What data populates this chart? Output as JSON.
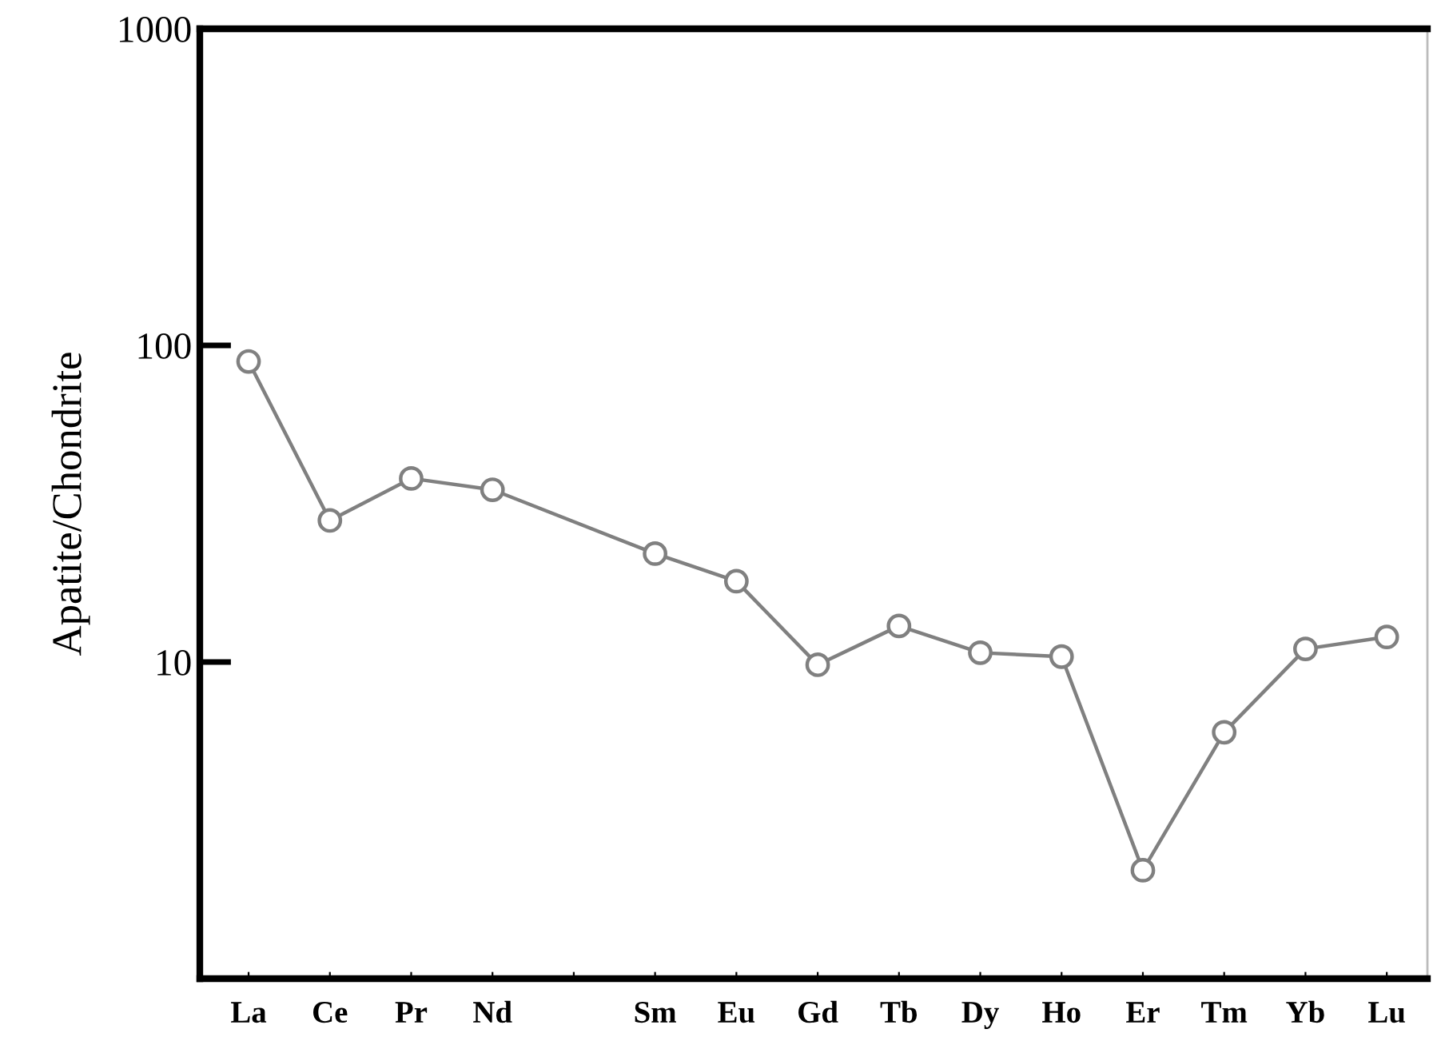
{
  "chart_data": {
    "type": "line",
    "ylabel": "Apatite/Chondrite",
    "categories": [
      "La",
      "Ce",
      "Pr",
      "Nd",
      null,
      "Sm",
      "Eu",
      "Gd",
      "Tb",
      "Dy",
      "Ho",
      "Er",
      "Tm",
      "Yb",
      "Lu"
    ],
    "series": [
      {
        "color": "#808080",
        "values": [
          89,
          28,
          38,
          35,
          null,
          22,
          18,
          9.8,
          13,
          10.7,
          10.4,
          2.2,
          6.0,
          11,
          12
        ]
      }
    ],
    "log": "y",
    "ylim": [
      1,
      1000
    ],
    "yticks": [
      10,
      100,
      1000
    ],
    "marker": "circle",
    "line_style": "solid",
    "grid": false,
    "legend": false
  }
}
